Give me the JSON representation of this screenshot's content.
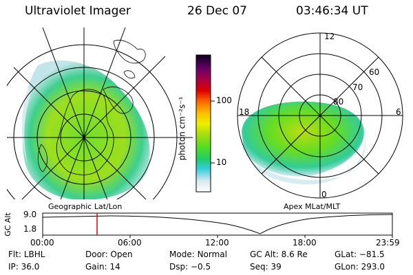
{
  "header": {
    "instrument": "Ultraviolet Imager",
    "date": "26 Dec 07",
    "time": "03:46:34 UT"
  },
  "geo_panel": {
    "label": "Geographic Lat/Lon"
  },
  "apex_panel": {
    "label": "Apex MLat/MLT",
    "mlt_labels": {
      "top": "12",
      "left": "18",
      "right": "6",
      "bottom": "0"
    },
    "lat_labels": [
      "60",
      "70",
      "80"
    ]
  },
  "colorbar": {
    "unit_label": "photon cm⁻²s⁻¹",
    "ticks": [
      {
        "label": "100",
        "value": 100
      },
      {
        "label": "10",
        "value": 10
      }
    ],
    "range": [
      2,
      700
    ],
    "scale": "log"
  },
  "altitude_plot": {
    "ylabel": "GC Alt",
    "yticks": [
      "9.0",
      "1.8"
    ],
    "xticks": [
      "00:00",
      "06:00",
      "12:00",
      "18:00",
      "23:59"
    ],
    "current_time_hours": 3.78,
    "current_marker_color": "#dd0000"
  },
  "info": {
    "row1": [
      {
        "key": "Flt:",
        "value": "LBHL"
      },
      {
        "key": "Door:",
        "value": "Open"
      },
      {
        "key": "Mode:",
        "value": "Normal"
      },
      {
        "key": "GC Alt:",
        "value": "8.6 Re"
      },
      {
        "key": "GLat:",
        "value": "−81.5"
      }
    ],
    "row2": [
      {
        "key": "IP:",
        "value": "36.0"
      },
      {
        "key": "Gain:",
        "value": "14"
      },
      {
        "key": "Dsp:",
        "value": "−0.5"
      },
      {
        "key": "Seq:",
        "value": "39"
      },
      {
        "key": "GLon:",
        "value": "293.0"
      }
    ]
  }
}
